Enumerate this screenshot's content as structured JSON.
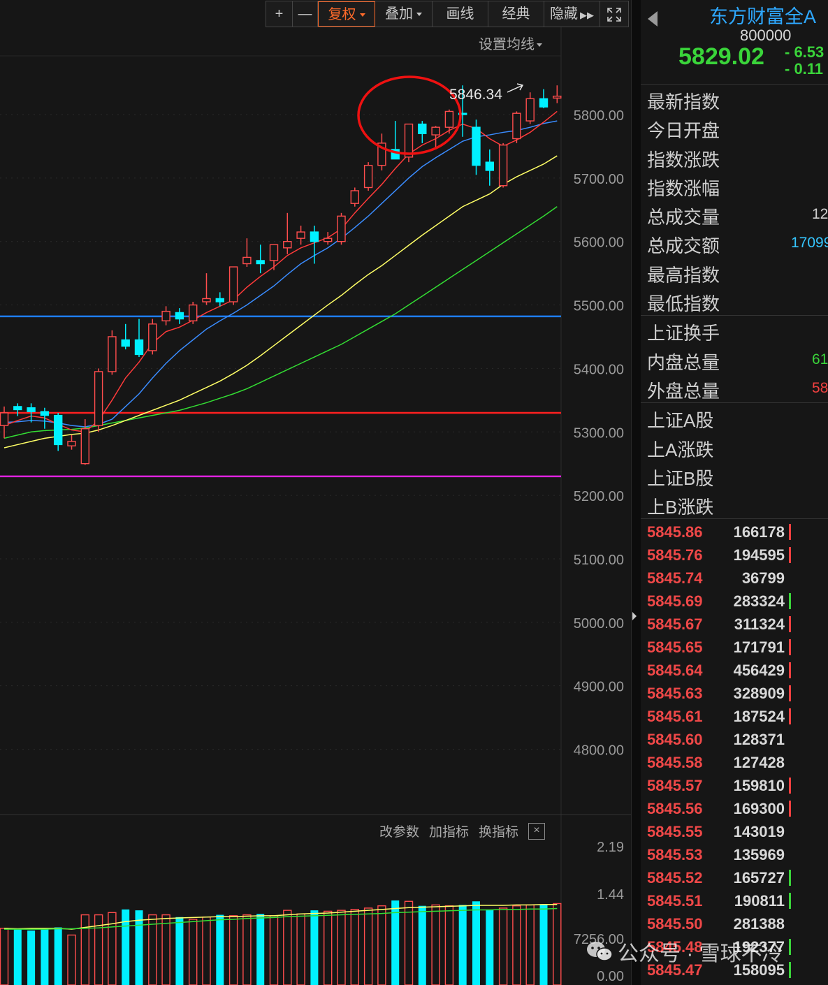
{
  "toolbar": {
    "zoom_in": "+",
    "zoom_out": "—",
    "fuquan": "复权",
    "overlay": "叠加",
    "draw": "画线",
    "classic": "经典",
    "hide": "隐藏",
    "fullscreen_icon": "fullscreen-icon"
  },
  "set_ma_label": "设置均线",
  "price_axis": [
    "5800.00",
    "5700.00",
    "5600.00",
    "5500.00",
    "5400.00",
    "5300.00",
    "5200.00",
    "5100.00",
    "5000.00",
    "4900.00",
    "4800.00"
  ],
  "high_marker": "5846.34",
  "indicator_bar": {
    "edit": "改参数",
    "add": "加指标",
    "switch": "换指标",
    "close": "×"
  },
  "volume_axis": [
    "2.19",
    "1.44",
    "7256.00",
    "0.00"
  ],
  "colors": {
    "up": "#ff4d4d",
    "down": "#00f0ff",
    "ma5": "#ff3a3a",
    "ma10": "#3a8cff",
    "ma20": "#ffff66",
    "ma60": "#33dd33",
    "line_blue": "#1e7dff",
    "line_red": "#ff2020",
    "line_magenta": "#dd22dd",
    "circle": "#ee1111",
    "accent": "#ff6a2a"
  },
  "chart_data": {
    "type": "candlestick",
    "ylim": [
      4750,
      5900
    ],
    "candles": [
      {
        "o": 5310,
        "h": 5340,
        "l": 5290,
        "c": 5330
      },
      {
        "o": 5340,
        "h": 5345,
        "l": 5325,
        "c": 5335
      },
      {
        "o": 5338,
        "h": 5345,
        "l": 5315,
        "c": 5332
      },
      {
        "o": 5332,
        "h": 5338,
        "l": 5305,
        "c": 5326
      },
      {
        "o": 5326,
        "h": 5330,
        "l": 5270,
        "c": 5280
      },
      {
        "o": 5278,
        "h": 5295,
        "l": 5272,
        "c": 5285
      },
      {
        "o": 5250,
        "h": 5320,
        "l": 5248,
        "c": 5305
      },
      {
        "o": 5310,
        "h": 5400,
        "l": 5300,
        "c": 5395
      },
      {
        "o": 5395,
        "h": 5460,
        "l": 5390,
        "c": 5450
      },
      {
        "o": 5445,
        "h": 5470,
        "l": 5430,
        "c": 5435
      },
      {
        "o": 5445,
        "h": 5478,
        "l": 5418,
        "c": 5422
      },
      {
        "o": 5428,
        "h": 5478,
        "l": 5422,
        "c": 5470
      },
      {
        "o": 5475,
        "h": 5498,
        "l": 5468,
        "c": 5490
      },
      {
        "o": 5488,
        "h": 5495,
        "l": 5470,
        "c": 5478
      },
      {
        "o": 5475,
        "h": 5505,
        "l": 5470,
        "c": 5500
      },
      {
        "o": 5505,
        "h": 5550,
        "l": 5500,
        "c": 5510
      },
      {
        "o": 5510,
        "h": 5520,
        "l": 5498,
        "c": 5505
      },
      {
        "o": 5505,
        "h": 5560,
        "l": 5500,
        "c": 5560
      },
      {
        "o": 5565,
        "h": 5605,
        "l": 5560,
        "c": 5575
      },
      {
        "o": 5570,
        "h": 5595,
        "l": 5550,
        "c": 5565
      },
      {
        "o": 5570,
        "h": 5590,
        "l": 5555,
        "c": 5595
      },
      {
        "o": 5590,
        "h": 5645,
        "l": 5580,
        "c": 5600
      },
      {
        "o": 5605,
        "h": 5625,
        "l": 5595,
        "c": 5615
      },
      {
        "o": 5615,
        "h": 5625,
        "l": 5565,
        "c": 5600
      },
      {
        "o": 5600,
        "h": 5615,
        "l": 5595,
        "c": 5605
      },
      {
        "o": 5600,
        "h": 5645,
        "l": 5595,
        "c": 5640
      },
      {
        "o": 5660,
        "h": 5685,
        "l": 5655,
        "c": 5680
      },
      {
        "o": 5685,
        "h": 5725,
        "l": 5680,
        "c": 5720
      },
      {
        "o": 5720,
        "h": 5770,
        "l": 5712,
        "c": 5755
      },
      {
        "o": 5745,
        "h": 5790,
        "l": 5730,
        "c": 5730
      },
      {
        "o": 5733,
        "h": 5785,
        "l": 5725,
        "c": 5785
      },
      {
        "o": 5785,
        "h": 5790,
        "l": 5755,
        "c": 5770
      },
      {
        "o": 5768,
        "h": 5782,
        "l": 5745,
        "c": 5780
      },
      {
        "o": 5780,
        "h": 5808,
        "l": 5770,
        "c": 5805
      },
      {
        "o": 5802,
        "h": 5846,
        "l": 5765,
        "c": 5800
      },
      {
        "o": 5780,
        "h": 5792,
        "l": 5705,
        "c": 5720
      },
      {
        "o": 5725,
        "h": 5745,
        "l": 5688,
        "c": 5712
      },
      {
        "o": 5688,
        "h": 5755,
        "l": 5685,
        "c": 5752
      },
      {
        "o": 5762,
        "h": 5805,
        "l": 5755,
        "c": 5802
      },
      {
        "o": 5790,
        "h": 5835,
        "l": 5785,
        "c": 5825
      },
      {
        "o": 5825,
        "h": 5840,
        "l": 5810,
        "c": 5812
      },
      {
        "o": 5826,
        "h": 5846,
        "l": 5818,
        "c": 5829
      }
    ],
    "ma5": [
      5310,
      5318,
      5325,
      5322,
      5312,
      5303,
      5300,
      5318,
      5350,
      5385,
      5410,
      5440,
      5458,
      5465,
      5476,
      5488,
      5498,
      5508,
      5528,
      5545,
      5560,
      5578,
      5590,
      5598,
      5606,
      5620,
      5645,
      5668,
      5690,
      5715,
      5738,
      5752,
      5762,
      5775,
      5785,
      5778,
      5762,
      5750,
      5760,
      5772,
      5788,
      5805
    ],
    "ma10": [
      5315,
      5316,
      5318,
      5317,
      5314,
      5310,
      5308,
      5312,
      5320,
      5340,
      5360,
      5385,
      5408,
      5428,
      5445,
      5462,
      5475,
      5487,
      5500,
      5515,
      5530,
      5548,
      5565,
      5578,
      5590,
      5605,
      5622,
      5640,
      5660,
      5680,
      5700,
      5718,
      5732,
      5745,
      5758,
      5765,
      5768,
      5772,
      5775,
      5780,
      5786,
      5790
    ],
    "ma20": [
      5275,
      5280,
      5285,
      5290,
      5293,
      5296,
      5298,
      5303,
      5310,
      5318,
      5326,
      5334,
      5342,
      5350,
      5360,
      5370,
      5380,
      5392,
      5405,
      5420,
      5436,
      5452,
      5468,
      5484,
      5500,
      5515,
      5532,
      5548,
      5562,
      5578,
      5594,
      5610,
      5625,
      5640,
      5655,
      5665,
      5675,
      5690,
      5702,
      5712,
      5722,
      5735
    ],
    "ma60": [
      5290,
      5295,
      5300,
      5302,
      5303,
      5304,
      5306,
      5310,
      5314,
      5318,
      5322,
      5326,
      5330,
      5334,
      5340,
      5346,
      5353,
      5360,
      5368,
      5378,
      5388,
      5398,
      5408,
      5418,
      5428,
      5438,
      5450,
      5462,
      5474,
      5486,
      5500,
      5514,
      5528,
      5542,
      5556,
      5570,
      5584,
      5598,
      5612,
      5626,
      5640,
      5655
    ],
    "hlines": [
      {
        "v": 5482,
        "color": "line_blue"
      },
      {
        "v": 5330,
        "color": "line_red"
      },
      {
        "v": 5230,
        "color": "line_magenta"
      }
    ],
    "volume": {
      "ylim": [
        0,
        2.5
      ],
      "values": [
        1.2,
        1.18,
        1.15,
        1.2,
        1.22,
        1.05,
        1.5,
        1.5,
        1.55,
        1.62,
        1.6,
        1.5,
        1.5,
        1.45,
        1.4,
        1.45,
        1.5,
        1.48,
        1.5,
        1.52,
        1.48,
        1.6,
        1.52,
        1.6,
        1.58,
        1.6,
        1.62,
        1.65,
        1.7,
        1.82,
        1.8,
        1.7,
        1.72,
        1.7,
        1.72,
        1.8,
        1.62,
        1.65,
        1.7,
        1.72,
        1.72,
        1.75
      ],
      "ma1": [
        1.2,
        1.19,
        1.2,
        1.2,
        1.2,
        1.18,
        1.22,
        1.26,
        1.3,
        1.35,
        1.38,
        1.4,
        1.42,
        1.43,
        1.44,
        1.45,
        1.46,
        1.46,
        1.47,
        1.48,
        1.48,
        1.5,
        1.52,
        1.53,
        1.54,
        1.56,
        1.58,
        1.6,
        1.62,
        1.64,
        1.66,
        1.67,
        1.68,
        1.69,
        1.7,
        1.71,
        1.71,
        1.71,
        1.72,
        1.72,
        1.73,
        1.73
      ],
      "ma2": [
        1.18,
        1.18,
        1.18,
        1.18,
        1.19,
        1.19,
        1.2,
        1.21,
        1.23,
        1.25,
        1.27,
        1.29,
        1.31,
        1.33,
        1.35,
        1.37,
        1.39,
        1.4,
        1.42,
        1.43,
        1.44,
        1.46,
        1.47,
        1.48,
        1.49,
        1.5,
        1.51,
        1.52,
        1.53,
        1.55,
        1.56,
        1.57,
        1.58,
        1.59,
        1.6,
        1.61,
        1.61,
        1.62,
        1.62,
        1.63,
        1.63,
        1.64
      ]
    }
  },
  "panel": {
    "name": "东方财富全A",
    "code": "800000",
    "price": "5829.02",
    "change": "- 6.53",
    "change_pct": "- 0.11",
    "section1": [
      {
        "label": "最新指数",
        "value": ""
      },
      {
        "label": "今日开盘",
        "value": ""
      },
      {
        "label": "指数涨跌",
        "value": ""
      },
      {
        "label": "指数涨幅",
        "value": ""
      },
      {
        "label": "总成交量",
        "value": "12"
      },
      {
        "label": "总成交额",
        "value": "17099"
      },
      {
        "label": "最高指数",
        "value": ""
      },
      {
        "label": "最低指数",
        "value": ""
      }
    ],
    "section2": [
      {
        "label": "上证换手",
        "value": ""
      },
      {
        "label": "内盘总量",
        "value": "61"
      },
      {
        "label": "外盘总量",
        "value": "58"
      }
    ],
    "section3": [
      {
        "label": "上证A股",
        "value": ""
      },
      {
        "label": "上A涨跌",
        "value": ""
      },
      {
        "label": "上证B股",
        "value": ""
      },
      {
        "label": "上B涨跌",
        "value": ""
      }
    ],
    "ticks": [
      {
        "p": "5845.86",
        "v": "166178",
        "m": "red"
      },
      {
        "p": "5845.76",
        "v": "194595",
        "m": "red"
      },
      {
        "p": "5845.74",
        "v": "36799",
        "m": ""
      },
      {
        "p": "5845.69",
        "v": "283324",
        "m": "grn"
      },
      {
        "p": "5845.67",
        "v": "311324",
        "m": "red"
      },
      {
        "p": "5845.65",
        "v": "171791",
        "m": "red"
      },
      {
        "p": "5845.64",
        "v": "456429",
        "m": "red"
      },
      {
        "p": "5845.63",
        "v": "328909",
        "m": "red"
      },
      {
        "p": "5845.61",
        "v": "187524",
        "m": "red"
      },
      {
        "p": "5845.60",
        "v": "128371",
        "m": ""
      },
      {
        "p": "5845.58",
        "v": "127428",
        "m": ""
      },
      {
        "p": "5845.57",
        "v": "159810",
        "m": "red"
      },
      {
        "p": "5845.56",
        "v": "169300",
        "m": "red"
      },
      {
        "p": "5845.55",
        "v": "143019",
        "m": ""
      },
      {
        "p": "5845.53",
        "v": "135969",
        "m": ""
      },
      {
        "p": "5845.52",
        "v": "165727",
        "m": "grn"
      },
      {
        "p": "5845.51",
        "v": "190811",
        "m": "grn"
      },
      {
        "p": "5845.50",
        "v": "281388",
        "m": ""
      },
      {
        "p": "5845.48",
        "v": "192377",
        "m": "grn"
      },
      {
        "p": "5845.47",
        "v": "158095",
        "m": "grn"
      }
    ]
  },
  "watermark": "公众号 · 雪球不冷"
}
